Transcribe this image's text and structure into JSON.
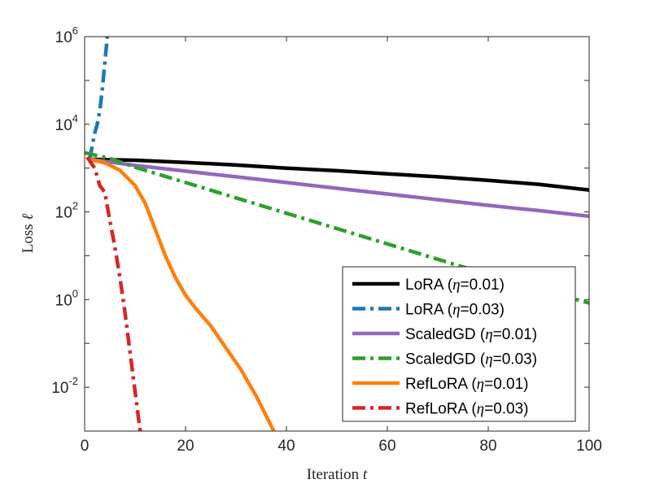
{
  "chart_data": {
    "type": "line",
    "xlabel": "Iteration",
    "xlabel_var": "t",
    "ylabel": "Loss",
    "ylabel_var": "ℓ",
    "yscale": "log",
    "xlim": [
      0,
      100
    ],
    "ylim_exp": [
      -3,
      6
    ],
    "x_ticks": [
      "0",
      "20",
      "40",
      "60",
      "80",
      "100"
    ],
    "y_ticks": [
      {
        "base": "10",
        "exp": "6"
      },
      {
        "base": "10",
        "exp": "4"
      },
      {
        "base": "10",
        "exp": "2"
      },
      {
        "base": "10",
        "exp": "0"
      },
      {
        "base": "10",
        "exp": "-2"
      }
    ],
    "legend_position": "bottom-right",
    "series": [
      {
        "name": "LoRA",
        "eta_label": "η",
        "lr": "=0.01",
        "color": "#000000",
        "style": "solid",
        "log10_points": [
          [
            1,
            3.2
          ],
          [
            10,
            3.18
          ],
          [
            20,
            3.13
          ],
          [
            30,
            3.07
          ],
          [
            40,
            3.0
          ],
          [
            50,
            2.94
          ],
          [
            60,
            2.87
          ],
          [
            70,
            2.8
          ],
          [
            80,
            2.72
          ],
          [
            90,
            2.63
          ],
          [
            100,
            2.5
          ]
        ]
      },
      {
        "name": "LoRA",
        "eta_label": "η",
        "lr": "=0.03",
        "color": "#1f77b4",
        "style": "dashdot",
        "log10_points": [
          [
            1,
            3.2
          ],
          [
            1.5,
            3.5
          ],
          [
            2,
            3.8
          ],
          [
            2.5,
            4.0
          ],
          [
            3,
            4.3
          ],
          [
            3.5,
            4.8
          ],
          [
            4,
            5.4
          ],
          [
            4.5,
            6.0
          ]
        ]
      },
      {
        "name": "ScaledGD",
        "eta_label": "η",
        "lr": "=0.01",
        "color": "#9467bd",
        "style": "solid",
        "log10_points": [
          [
            1,
            3.2
          ],
          [
            10,
            3.06
          ],
          [
            20,
            2.93
          ],
          [
            30,
            2.8
          ],
          [
            40,
            2.67
          ],
          [
            50,
            2.54
          ],
          [
            60,
            2.41
          ],
          [
            70,
            2.28
          ],
          [
            80,
            2.15
          ],
          [
            90,
            2.03
          ],
          [
            100,
            1.9
          ]
        ]
      },
      {
        "name": "ScaledGD",
        "eta_label": "η",
        "lr": "=0.03",
        "color": "#2ca02c",
        "style": "dashdot",
        "log10_points": [
          [
            0,
            3.35
          ],
          [
            5,
            3.22
          ],
          [
            10,
            3.02
          ],
          [
            20,
            2.67
          ],
          [
            30,
            2.32
          ],
          [
            40,
            1.97
          ],
          [
            50,
            1.62
          ],
          [
            60,
            1.27
          ],
          [
            70,
            0.92
          ],
          [
            80,
            0.57
          ],
          [
            90,
            0.24
          ],
          [
            100,
            -0.08
          ]
        ]
      },
      {
        "name": "RefLoRA",
        "eta_label": "η",
        "lr": "=0.01",
        "color": "#ff7f0e",
        "style": "solid",
        "log10_points": [
          [
            1,
            3.2
          ],
          [
            4,
            3.12
          ],
          [
            7,
            2.95
          ],
          [
            10,
            2.6
          ],
          [
            12,
            2.2
          ],
          [
            14,
            1.6
          ],
          [
            16,
            1.0
          ],
          [
            18,
            0.5
          ],
          [
            20,
            0.1
          ],
          [
            22,
            -0.2
          ],
          [
            25,
            -0.6
          ],
          [
            28,
            -1.1
          ],
          [
            31,
            -1.6
          ],
          [
            34,
            -2.2
          ],
          [
            37.5,
            -3.0
          ]
        ]
      },
      {
        "name": "RefLoRA",
        "eta_label": "η",
        "lr": "=0.03",
        "color": "#d62728",
        "style": "dashdot",
        "log10_points": [
          [
            0.5,
            3.25
          ],
          [
            2,
            3.0
          ],
          [
            3,
            2.6
          ],
          [
            4,
            2.45
          ],
          [
            5,
            1.8
          ],
          [
            6,
            1.2
          ],
          [
            7,
            0.5
          ],
          [
            8,
            -0.3
          ],
          [
            9,
            -1.2
          ],
          [
            10,
            -2.1
          ],
          [
            11,
            -3.0
          ]
        ]
      }
    ]
  }
}
